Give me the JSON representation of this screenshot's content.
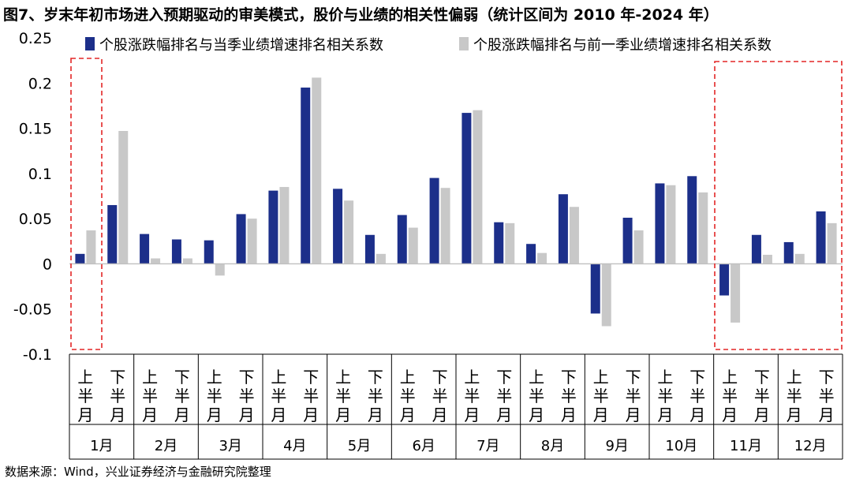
{
  "title": "图7、岁末年初市场进入预期驱动的审美模式，股价与业绩的相关性偏弱（统计区间为 2010 年-2024 年）",
  "source": "数据来源：Wind，兴业证券经济与金融研究院整理",
  "colors": {
    "series_current": "#1c2f8a",
    "series_previous": "#c8c8c8",
    "highlight_box": "#e32626"
  },
  "chart_data": {
    "type": "bar",
    "categories": [
      "1月上半月",
      "1月下半月",
      "2月上半月",
      "2月下半月",
      "3月上半月",
      "3月下半月",
      "4月上半月",
      "4月下半月",
      "5月上半月",
      "5月下半月",
      "6月上半月",
      "6月下半月",
      "7月上半月",
      "7月下半月",
      "8月上半月",
      "8月下半月",
      "9月上半月",
      "9月下半月",
      "10月上半月",
      "10月下半月",
      "11月上半月",
      "11月下半月",
      "12月上半月",
      "12月下半月"
    ],
    "half_labels": [
      "上半月",
      "下半月"
    ],
    "months": [
      "1月",
      "2月",
      "3月",
      "4月",
      "5月",
      "6月",
      "7月",
      "8月",
      "9月",
      "10月",
      "11月",
      "12月"
    ],
    "series": [
      {
        "name": "个股涨跌幅排名与当季业绩增速排名相关系数",
        "values": [
          0.011,
          0.065,
          0.033,
          0.027,
          0.026,
          0.055,
          0.081,
          0.195,
          0.083,
          0.032,
          0.054,
          0.095,
          0.167,
          0.046,
          0.022,
          0.077,
          -0.055,
          0.051,
          0.089,
          0.097,
          -0.035,
          0.032,
          0.024,
          0.058
        ]
      },
      {
        "name": "个股涨跌幅排名与前一季业绩增速排名相关系数",
        "values": [
          0.037,
          0.147,
          0.006,
          0.006,
          -0.013,
          0.05,
          0.085,
          0.206,
          0.07,
          0.011,
          0.04,
          0.084,
          0.17,
          0.045,
          0.012,
          0.063,
          -0.069,
          0.037,
          0.087,
          0.079,
          -0.065,
          0.01,
          0.011,
          0.045
        ]
      }
    ],
    "ylim": [
      -0.1,
      0.25
    ],
    "yticks": [
      "0.25",
      "0.2",
      "0.15",
      "0.1",
      "0.05",
      "0",
      "-0.05",
      "-0.1"
    ],
    "ytick_values": [
      0.25,
      0.2,
      0.15,
      0.1,
      0.05,
      0,
      -0.05,
      -0.1
    ],
    "legend_position": "top",
    "grid": false,
    "highlighted_months": [
      "1月",
      "11月",
      "12月"
    ]
  }
}
